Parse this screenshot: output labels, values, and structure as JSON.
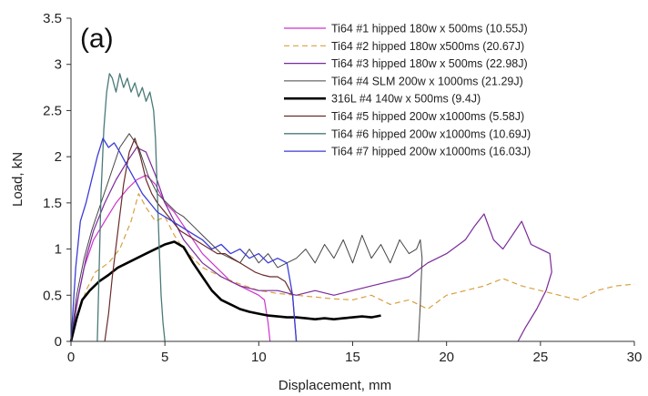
{
  "chart_data": {
    "type": "line",
    "panel_label": "(a)",
    "title": "",
    "xlabel": "Displacement, mm",
    "ylabel": "Load, kN",
    "xlim": [
      0,
      30
    ],
    "ylim": [
      0,
      3.5
    ],
    "xticks": [
      0,
      5,
      10,
      15,
      20,
      25,
      30
    ],
    "yticks": [
      0,
      0.5,
      1,
      1.5,
      2,
      2.5,
      3,
      3.5
    ],
    "ytick_labels": [
      "0",
      "0.5",
      "1",
      "1.5",
      "2",
      "2.5",
      "3",
      "3.5"
    ],
    "grid": false,
    "legend_position": "top-right",
    "series": [
      {
        "name": "Ti64 #1 hipped 180w x 500ms (10.55J)",
        "color": "#cc33cc",
        "dash": "",
        "width": 1.2,
        "x": [
          0,
          0.3,
          0.7,
          1.2,
          1.8,
          2.4,
          3.0,
          3.5,
          4.0,
          4.5,
          5.0,
          5.5,
          6.0,
          6.5,
          7.0,
          7.5,
          8.0,
          8.5,
          9.0,
          9.5,
          10.0,
          10.3,
          10.5,
          10.6
        ],
        "y": [
          0,
          0.4,
          0.8,
          1.1,
          1.3,
          1.5,
          1.65,
          1.75,
          1.8,
          1.7,
          1.5,
          1.4,
          1.25,
          1.1,
          0.95,
          0.85,
          0.75,
          0.65,
          0.6,
          0.55,
          0.5,
          0.45,
          0.2,
          0
        ]
      },
      {
        "name": "Ti64 #2 hipped 180w x500ms (20.67J)",
        "color": "#d8a040",
        "dash": "6,4",
        "width": 1.2,
        "x": [
          0,
          0.4,
          0.8,
          1.3,
          2.0,
          2.6,
          3.2,
          3.6,
          4.0,
          4.5,
          5.0,
          5.5,
          6.0,
          6.5,
          7.0,
          8.0,
          9.0,
          10.0,
          11.0,
          12.0,
          13.0,
          14.0,
          15.0,
          16.0,
          17.0,
          18.0,
          19.0,
          20.0,
          21.0,
          22.0,
          23.0,
          24.0,
          25.0,
          26.0,
          27.0,
          28.0,
          29.0,
          30.0
        ],
        "y": [
          0,
          0.3,
          0.55,
          0.75,
          0.85,
          1.0,
          1.3,
          1.6,
          1.45,
          1.3,
          1.35,
          1.15,
          1.0,
          0.9,
          0.8,
          0.7,
          0.62,
          0.55,
          0.52,
          0.5,
          0.48,
          0.46,
          0.45,
          0.5,
          0.4,
          0.45,
          0.35,
          0.5,
          0.55,
          0.6,
          0.68,
          0.6,
          0.55,
          0.5,
          0.45,
          0.55,
          0.6,
          0.62
        ]
      },
      {
        "name": "Ti64 #3 hipped 180w x 500ms (22.98J)",
        "color": "#7a2a9a",
        "dash": "",
        "width": 1.2,
        "x": [
          0,
          0.4,
          0.8,
          1.2,
          1.8,
          2.4,
          3.0,
          3.5,
          4.0,
          4.5,
          5.0,
          5.5,
          6.0,
          7.0,
          8.0,
          9.0,
          10.0,
          11.0,
          12.0,
          13.0,
          14.0,
          15.0,
          16.0,
          17.0,
          18.0,
          19.0,
          20.0,
          21.0,
          21.5,
          22.0,
          22.5,
          23.0,
          23.5,
          24.0,
          24.5,
          25.0,
          25.5,
          25.6,
          25.3,
          24.8,
          24.2,
          23.8
        ],
        "y": [
          0,
          0.5,
          0.9,
          1.2,
          1.5,
          1.75,
          1.95,
          2.1,
          2.05,
          1.8,
          1.5,
          1.3,
          1.1,
          0.85,
          0.7,
          0.6,
          0.55,
          0.55,
          0.5,
          0.55,
          0.5,
          0.55,
          0.6,
          0.65,
          0.7,
          0.85,
          0.95,
          1.1,
          1.25,
          1.38,
          1.1,
          1.0,
          1.15,
          1.3,
          1.05,
          1.0,
          0.95,
          0.75,
          0.55,
          0.35,
          0.15,
          0
        ]
      },
      {
        "name": "Ti64 #4 SLM 200w x 1000ms (21.29J)",
        "color": "#444444",
        "dash": "",
        "width": 1.0,
        "x": [
          0,
          0.3,
          0.7,
          1.1,
          1.6,
          2.1,
          2.6,
          3.1,
          3.6,
          4.1,
          4.6,
          5.1,
          5.6,
          6.0,
          6.5,
          7.0,
          7.5,
          8.0,
          8.5,
          9.0,
          9.5,
          10.0,
          10.5,
          11.0,
          11.5,
          12.0,
          12.5,
          13.0,
          13.5,
          14.0,
          14.5,
          15.0,
          15.5,
          16.0,
          16.5,
          17.0,
          17.5,
          18.0,
          18.4,
          18.6,
          18.7,
          18.6,
          18.5
        ],
        "y": [
          0,
          0.5,
          0.9,
          1.2,
          1.5,
          1.8,
          2.1,
          2.25,
          2.1,
          1.8,
          1.6,
          1.5,
          1.4,
          1.35,
          1.25,
          1.15,
          1.05,
          0.95,
          0.9,
          0.85,
          1.0,
          0.85,
          0.95,
          0.8,
          0.85,
          0.9,
          1.0,
          0.85,
          1.05,
          0.9,
          1.1,
          0.85,
          1.15,
          0.9,
          1.05,
          0.85,
          1.1,
          0.95,
          1.0,
          1.1,
          0.9,
          0.4,
          0
        ]
      },
      {
        "name": "316L #4 140w x 500ms (9.4J)",
        "color": "#000000",
        "dash": "",
        "width": 2.6,
        "x": [
          0,
          0.3,
          0.6,
          1.0,
          1.5,
          2.0,
          2.5,
          3.0,
          3.5,
          4.0,
          4.5,
          5.0,
          5.5,
          6.0,
          6.5,
          7.0,
          7.5,
          8.0,
          8.5,
          9.0,
          9.5,
          10.0,
          10.5,
          11.0,
          11.5,
          12.0,
          12.5,
          13.0,
          13.5,
          14.0,
          14.5,
          15.0,
          15.5,
          16.0,
          16.5
        ],
        "y": [
          0,
          0.25,
          0.45,
          0.55,
          0.65,
          0.72,
          0.8,
          0.85,
          0.9,
          0.95,
          1.0,
          1.05,
          1.08,
          1.02,
          0.85,
          0.7,
          0.55,
          0.45,
          0.4,
          0.35,
          0.32,
          0.3,
          0.28,
          0.27,
          0.26,
          0.26,
          0.25,
          0.24,
          0.25,
          0.24,
          0.25,
          0.26,
          0.27,
          0.26,
          0.28
        ]
      },
      {
        "name": "Ti64 #5 hipped 200w x1000ms (5.58J)",
        "color": "#6b2a2a",
        "dash": "",
        "width": 1.2,
        "x": [
          1.8,
          2.0,
          2.2,
          2.5,
          2.8,
          3.1,
          3.4,
          3.7,
          4.0,
          4.3,
          4.6,
          5.0,
          5.4,
          5.8,
          6.2,
          6.6,
          7.0,
          7.4,
          7.8,
          8.2,
          8.6,
          9.0,
          9.4,
          9.8,
          10.2,
          10.6,
          11.0,
          11.4,
          11.8,
          12.0
        ],
        "y": [
          0,
          0.3,
          0.7,
          1.2,
          1.7,
          2.05,
          2.2,
          2.0,
          1.75,
          1.6,
          1.5,
          1.4,
          1.3,
          1.2,
          1.15,
          1.1,
          1.05,
          1.0,
          0.95,
          0.95,
          0.9,
          0.85,
          0.8,
          0.75,
          0.72,
          0.7,
          0.7,
          0.65,
          0.5,
          0
        ]
      },
      {
        "name": "Ti64 #6 hipped 200w x1000ms (10.69J)",
        "color": "#4a7a78",
        "dash": "",
        "width": 1.3,
        "x": [
          1.4,
          1.5,
          1.6,
          1.75,
          1.9,
          2.05,
          2.2,
          2.4,
          2.6,
          2.8,
          3.0,
          3.2,
          3.4,
          3.6,
          3.8,
          4.0,
          4.2,
          4.4,
          4.5,
          4.6,
          4.7,
          4.8,
          4.9,
          5.0
        ],
        "y": [
          0,
          0.8,
          1.6,
          2.3,
          2.7,
          2.9,
          2.85,
          2.7,
          2.9,
          2.75,
          2.85,
          2.7,
          2.8,
          2.65,
          2.75,
          2.6,
          2.7,
          2.5,
          2.2,
          1.6,
          1.0,
          0.5,
          0.2,
          0
        ]
      },
      {
        "name": "Ti64 #7 hipped 200w x1000ms  (16.03J)",
        "color": "#3b3bd8",
        "dash": "",
        "width": 1.3,
        "x": [
          0,
          0.25,
          0.5,
          0.8,
          1.1,
          1.4,
          1.7,
          2.0,
          2.3,
          2.6,
          3.0,
          3.4,
          3.8,
          4.2,
          4.6,
          5.0,
          5.4,
          5.8,
          6.2,
          6.6,
          7.0,
          7.5,
          8.0,
          8.5,
          9.0,
          9.5,
          10.0,
          10.5,
          11.0,
          11.5,
          11.8,
          12.0
        ],
        "y": [
          0,
          0.8,
          1.3,
          1.5,
          1.75,
          2.0,
          2.2,
          2.1,
          2.15,
          2.05,
          1.9,
          1.75,
          1.6,
          1.5,
          1.4,
          1.35,
          1.3,
          1.25,
          1.2,
          1.15,
          1.1,
          1.0,
          1.05,
          0.95,
          1.0,
          0.9,
          0.95,
          0.85,
          0.9,
          0.85,
          0.5,
          0
        ]
      }
    ]
  }
}
